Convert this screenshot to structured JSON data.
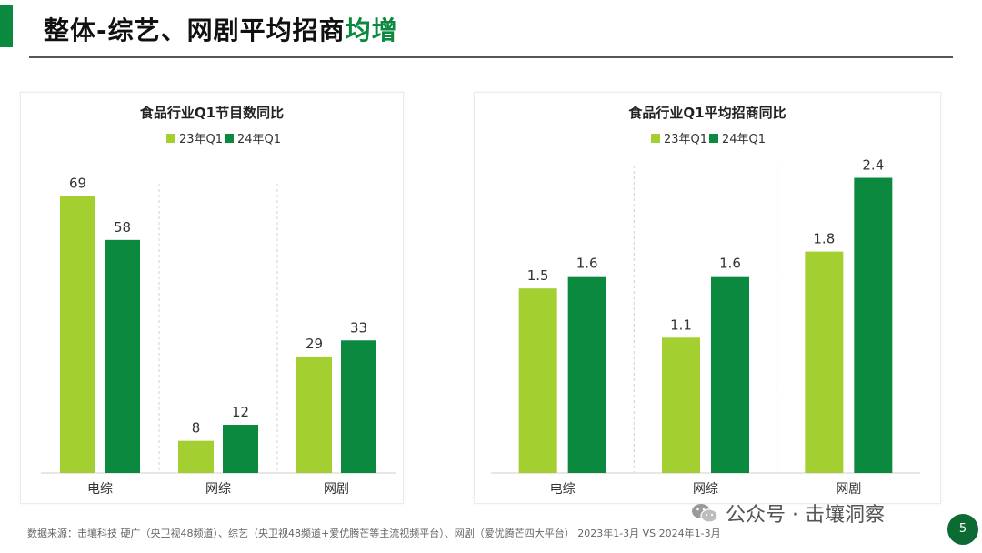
{
  "header": {
    "title_main": "整体-综艺、网剧平均招商",
    "title_highlight": "均增"
  },
  "colors": {
    "series_23": "#a4cf30",
    "series_24": "#0b8a3f",
    "accent": "#0b8a3f"
  },
  "chart_data": [
    {
      "type": "bar",
      "title": "食品行业Q1节目数同比",
      "categories": [
        "电综",
        "网综",
        "网剧"
      ],
      "series": [
        {
          "name": "23年Q1",
          "values": [
            69,
            8,
            29
          ]
        },
        {
          "name": "24年Q1",
          "values": [
            58,
            12,
            33
          ]
        }
      ],
      "value_labels": [
        [
          "69",
          "8",
          "29"
        ],
        [
          "58",
          "12",
          "33"
        ]
      ],
      "ylim": [
        0,
        72
      ]
    },
    {
      "type": "bar",
      "title": "食品行业Q1平均招商同比",
      "categories": [
        "电综",
        "网综",
        "网剧"
      ],
      "series": [
        {
          "name": "23年Q1",
          "values": [
            1.5,
            1.1,
            1.8
          ]
        },
        {
          "name": "24年Q1",
          "values": [
            1.6,
            1.6,
            2.4
          ]
        }
      ],
      "value_labels": [
        [
          "1.5",
          "1.1",
          "1.8"
        ],
        [
          "1.6",
          "1.6",
          "2.4"
        ]
      ],
      "ylim": [
        0,
        2.5
      ]
    }
  ],
  "footer": {
    "source": "数据来源：击壤科技 硬广（央卫视48频道）、综艺（央卫视48频道+爱优腾芒等主流视频平台）、网剧（爱优腾芒四大平台） 2023年1-3月 VS 2024年1-3月",
    "watermark": "公众号 · 击壤洞察",
    "page_number": "5"
  }
}
